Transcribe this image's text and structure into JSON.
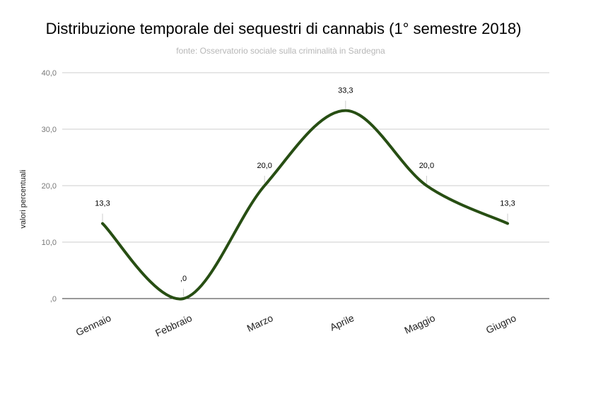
{
  "chart_data": {
    "type": "line",
    "title": "Distribuzione temporale dei sequestri di cannabis (1° semestre  2018)",
    "subtitle": "fonte: Osservatorio sociale sulla criminalità in Sardegna",
    "xlabel": "",
    "ylabel": "valori percentuali",
    "categories": [
      "Gennaio",
      "Febbraio",
      "Marzo",
      "Aprile",
      "Maggio",
      "Giugno"
    ],
    "series": [
      {
        "name": "valori percentuali",
        "values": [
          13.3,
          0,
          20.0,
          33.3,
          20.0,
          13.3
        ],
        "labels": [
          "13,3",
          ",0",
          "20,0",
          "33,3",
          "20,0",
          "13,3"
        ],
        "color": "#274e13"
      }
    ],
    "ylim": [
      0,
      40
    ],
    "yticks": [
      0,
      10,
      20,
      30,
      40
    ],
    "ytick_labels": [
      ",0",
      "10,0",
      "20,0",
      "30,0",
      "40,0"
    ],
    "grid": true,
    "smooth": true
  }
}
